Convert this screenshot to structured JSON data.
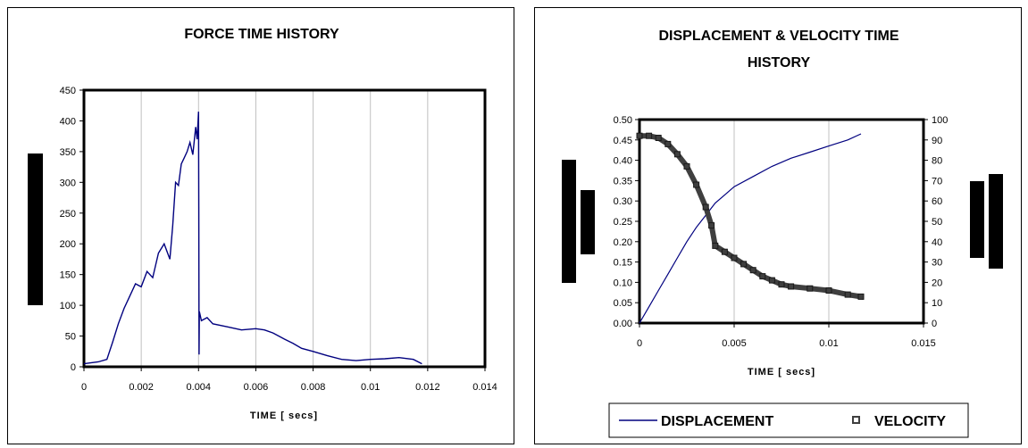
{
  "chart_data": [
    {
      "type": "line",
      "title": "FORCE TIME HISTORY",
      "xlabel": "TIME [ secs]",
      "ylabel": "",
      "xlim": [
        0,
        0.014
      ],
      "ylim": [
        0,
        450
      ],
      "xticks": [
        "0",
        "0.002",
        "0.004",
        "0.006",
        "0.008",
        "0.01",
        "0.012",
        "0.014"
      ],
      "yticks": [
        "0",
        "50",
        "100",
        "150",
        "200",
        "250",
        "300",
        "350",
        "400",
        "450"
      ],
      "grid": "vertical",
      "legend": "none",
      "colors": {
        "line": "#00007f"
      },
      "series": [
        {
          "name": "",
          "x": [
            0,
            0.0005,
            0.0008,
            0.001,
            0.0012,
            0.0014,
            0.0016,
            0.0018,
            0.002,
            0.0022,
            0.0024,
            0.0026,
            0.0028,
            0.003,
            0.0031,
            0.0032,
            0.0033,
            0.0034,
            0.0035,
            0.0036,
            0.0037,
            0.0038,
            0.0039,
            0.00395,
            0.004,
            0.00401,
            0.00402,
            0.00403,
            0.0041,
            0.0043,
            0.0045,
            0.005,
            0.0055,
            0.006,
            0.0063,
            0.0066,
            0.007,
            0.0073,
            0.0076,
            0.008,
            0.0085,
            0.009,
            0.0095,
            0.01,
            0.0105,
            0.011,
            0.0115,
            0.0118
          ],
          "y": [
            5,
            8,
            12,
            40,
            70,
            95,
            115,
            135,
            130,
            155,
            145,
            185,
            200,
            175,
            230,
            300,
            295,
            330,
            340,
            350,
            365,
            345,
            390,
            370,
            415,
            260,
            20,
            90,
            75,
            80,
            70,
            65,
            60,
            62,
            60,
            55,
            45,
            38,
            30,
            25,
            18,
            12,
            10,
            12,
            13,
            15,
            12,
            5
          ]
        }
      ]
    },
    {
      "type": "line",
      "title": "DISPLACEMENT & VELOCITY TIME HISTORY",
      "title_lines": [
        "DISPLACEMENT & VELOCITY TIME",
        "HISTORY"
      ],
      "xlabel": "TIME [ secs]",
      "ylabel": "",
      "y2label": "",
      "xlim": [
        0,
        0.015
      ],
      "ylim": [
        0,
        0.5
      ],
      "y2lim": [
        0,
        100
      ],
      "xticks": [
        "0",
        "0.005",
        "0.01",
        "0.015"
      ],
      "yticks": [
        "0.00",
        "0.05",
        "0.10",
        "0.15",
        "0.20",
        "0.25",
        "0.30",
        "0.35",
        "0.40",
        "0.45",
        "0.50"
      ],
      "y2ticks": [
        "0",
        "10",
        "20",
        "30",
        "40",
        "50",
        "60",
        "70",
        "80",
        "90",
        "100"
      ],
      "grid": "vertical",
      "legend": "bottom",
      "colors": {
        "displacement": "#00007f",
        "velocity": "#3f3f3f"
      },
      "series": [
        {
          "name": "DISPLACEMENT",
          "axis": "left",
          "x": [
            0,
            0.0005,
            0.001,
            0.0015,
            0.002,
            0.0025,
            0.003,
            0.0035,
            0.004,
            0.0045,
            0.005,
            0.006,
            0.007,
            0.008,
            0.009,
            0.01,
            0.011,
            0.0117
          ],
          "y": [
            0.0,
            0.04,
            0.08,
            0.12,
            0.16,
            0.2,
            0.235,
            0.265,
            0.295,
            0.315,
            0.335,
            0.36,
            0.385,
            0.405,
            0.42,
            0.435,
            0.45,
            0.465
          ]
        },
        {
          "name": "VELOCITY",
          "axis": "right",
          "x": [
            0,
            0.0005,
            0.001,
            0.0015,
            0.002,
            0.0025,
            0.003,
            0.0035,
            0.0038,
            0.004,
            0.0045,
            0.005,
            0.0055,
            0.006,
            0.0065,
            0.007,
            0.0075,
            0.008,
            0.009,
            0.01,
            0.011,
            0.0117
          ],
          "y": [
            92,
            92,
            91,
            88,
            83,
            77,
            68,
            57,
            48,
            38,
            35,
            32,
            29,
            26,
            23,
            21,
            19,
            18,
            17,
            16,
            14,
            13
          ]
        }
      ]
    }
  ]
}
